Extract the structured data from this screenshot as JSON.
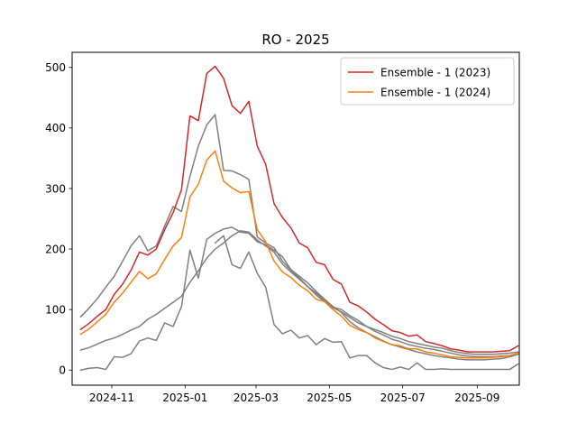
{
  "chart_data": {
    "type": "line",
    "title": "RO - 2025",
    "xlabel": "",
    "ylabel": "",
    "x_start": "2024-10-06",
    "x_step_days": 7,
    "xlim": [
      "2024-09-29",
      "2025-10-06"
    ],
    "ylim": [
      -25,
      525
    ],
    "x_ticks": [
      {
        "date": "2024-11-01",
        "label": "2024-11"
      },
      {
        "date": "2025-01-01",
        "label": "2025-01"
      },
      {
        "date": "2025-03-01",
        "label": "2025-03"
      },
      {
        "date": "2025-05-01",
        "label": "2025-05"
      },
      {
        "date": "2025-07-01",
        "label": "2025-07"
      },
      {
        "date": "2025-09-01",
        "label": "2025-09"
      }
    ],
    "y_ticks": [
      0,
      100,
      200,
      300,
      400,
      500
    ],
    "grid": false,
    "legend": "top-right",
    "series": [
      {
        "name": "",
        "color": "#808080",
        "in_legend": false,
        "values": [
          88,
          102,
          118,
          137,
          155,
          180,
          205,
          222,
          197,
          205,
          238,
          270,
          262,
          320,
          370,
          405,
          422,
          330,
          329,
          323,
          315,
          220,
          210,
          202,
          180,
          165,
          152,
          138,
          124,
          113,
          103,
          96,
          87,
          78,
          72,
          67,
          62,
          56,
          52,
          47,
          44,
          41,
          38,
          36,
          32,
          29,
          27,
          26,
          26,
          26,
          27,
          28,
          30
        ]
      },
      {
        "name": "",
        "color": "#808080",
        "in_legend": false,
        "values": [
          33,
          37,
          43,
          49,
          53,
          59,
          66,
          72,
          84,
          92,
          102,
          112,
          122,
          145,
          164,
          185,
          200,
          210,
          222,
          230,
          228,
          215,
          205,
          195,
          175,
          162,
          150,
          138,
          127,
          115,
          104,
          100,
          90,
          82,
          72,
          64,
          58,
          51,
          47,
          42,
          39,
          36,
          34,
          31,
          28,
          25,
          23,
          22,
          22,
          22,
          23,
          24,
          27
        ]
      },
      {
        "name": "",
        "color": "#808080",
        "in_legend": false,
        "values": [
          0,
          3,
          4,
          1,
          22,
          21,
          27,
          48,
          53,
          49,
          78,
          72,
          105,
          198,
          152,
          216,
          226,
          233,
          236,
          228,
          226,
          212,
          207,
          198,
          187,
          166,
          155,
          144,
          130,
          117,
          105,
          95,
          80,
          70,
          62,
          55,
          48,
          42,
          38,
          34,
          30,
          27,
          24,
          22,
          20,
          18,
          17,
          17,
          17,
          18,
          19,
          22,
          26
        ]
      },
      {
        "name": "",
        "color": "#808080",
        "in_legend": false,
        "values": [
          null,
          null,
          null,
          null,
          null,
          null,
          null,
          null,
          null,
          null,
          null,
          null,
          null,
          null,
          null,
          null,
          210,
          222,
          174,
          168,
          195,
          160,
          137,
          75,
          60,
          66,
          53,
          57,
          42,
          52,
          46,
          47,
          20,
          24,
          24,
          12,
          4,
          1,
          5,
          1,
          12,
          1,
          1,
          2,
          1,
          1,
          1,
          1,
          1,
          1,
          1,
          1,
          10
        ]
      },
      {
        "name": "Ensemble - 1 (2023)",
        "color": "#d62728",
        "in_legend": true,
        "values": [
          67,
          77,
          89,
          100,
          125,
          142,
          165,
          195,
          190,
          200,
          232,
          260,
          298,
          420,
          412,
          490,
          502,
          482,
          437,
          424,
          444,
          370,
          340,
          275,
          252,
          235,
          210,
          202,
          178,
          174,
          150,
          142,
          112,
          106,
          96,
          84,
          75,
          65,
          62,
          56,
          58,
          47,
          44,
          40,
          35,
          33,
          30,
          30,
          30,
          30,
          31,
          32,
          40
        ]
      },
      {
        "name": "Ensemble - 1 (2024)",
        "color": "#ff7f0e",
        "in_legend": true,
        "values": [
          59,
          68,
          80,
          92,
          112,
          127,
          145,
          163,
          151,
          159,
          183,
          205,
          219,
          286,
          307,
          347,
          362,
          312,
          301,
          293,
          295,
          232,
          212,
          180,
          162,
          153,
          140,
          131,
          117,
          113,
          100,
          89,
          74,
          67,
          62,
          53,
          47,
          42,
          40,
          35,
          35,
          30,
          28,
          25,
          22,
          21,
          20,
          20,
          20,
          21,
          22,
          24,
          28
        ]
      }
    ]
  }
}
